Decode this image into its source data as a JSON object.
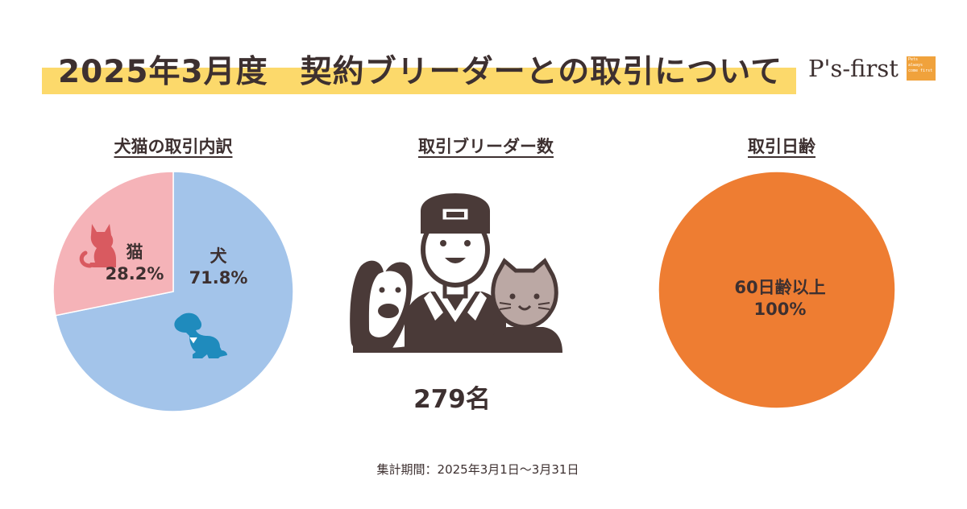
{
  "header": {
    "title": "2025年3月度　契約ブリーダーとの取引について",
    "logo_text": "P's-first",
    "logo_box_text": "Pets always come first",
    "band_color": "#fcd96b"
  },
  "sections": {
    "species": {
      "title": "犬猫の取引内訳"
    },
    "breeders": {
      "title": "取引ブリーダー数",
      "count": "279名",
      "illustration": "breeder-with-dog-and-cat-icon"
    },
    "age": {
      "title": "取引日齢"
    }
  },
  "chart_data": [
    {
      "type": "pie",
      "title": "犬猫の取引内訳",
      "slices": [
        {
          "name": "犬",
          "value": 71.8,
          "label": "71.8%",
          "color": "#a3c4ea",
          "icon": "dog-icon"
        },
        {
          "name": "猫",
          "value": 28.2,
          "label": "28.2%",
          "color": "#f5b3b8",
          "icon": "cat-icon"
        }
      ]
    },
    {
      "type": "pie",
      "title": "取引日齢",
      "slices": [
        {
          "name": "60日齢以上",
          "value": 100,
          "label": "100%",
          "color": "#ee7d32"
        }
      ]
    }
  ],
  "footer": {
    "period": "集計期間：2025年3月1日～3月31日"
  }
}
